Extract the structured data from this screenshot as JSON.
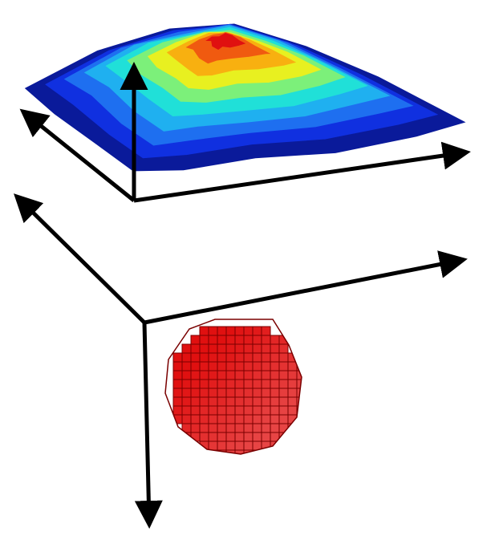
{
  "figure": {
    "description_hidden": "",
    "colors": {
      "axis": "#000000",
      "voxel_fill": "#e01010",
      "voxel_edge": "#7a0000",
      "colormap": [
        "#0a1a9a",
        "#1030e0",
        "#1e6ff0",
        "#1fb0f0",
        "#20e0d8",
        "#7cf07a",
        "#e8f020",
        "#f8b010",
        "#f05a10",
        "#e01010"
      ]
    },
    "icons": {
      "surface": "height-surface-icon",
      "voxel_ball": "voxel-sphere-icon"
    }
  }
}
